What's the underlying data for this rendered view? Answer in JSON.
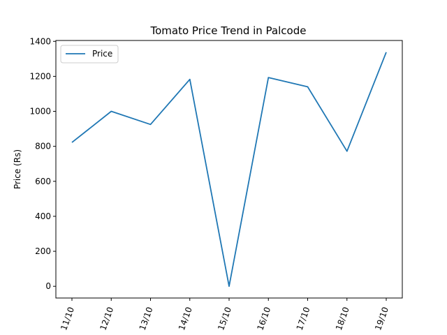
{
  "chart_data": {
    "type": "line",
    "title": "Tomato Price Trend in Palcode",
    "xlabel": "",
    "ylabel": "Price (Rs)",
    "categories": [
      "11/10",
      "12/10",
      "13/10",
      "14/10",
      "15/10",
      "16/10",
      "17/10",
      "18/10",
      "19/10"
    ],
    "series": [
      {
        "name": "Price",
        "values": [
          822,
          1000,
          925,
          1183,
          0,
          1193,
          1140,
          772,
          1338
        ],
        "color": "#1f77b4"
      }
    ],
    "ylim": [
      -67,
      1405
    ],
    "yticks": [
      0,
      200,
      400,
      600,
      800,
      1000,
      1200,
      1400
    ],
    "grid": false,
    "legend": "upper-left"
  }
}
